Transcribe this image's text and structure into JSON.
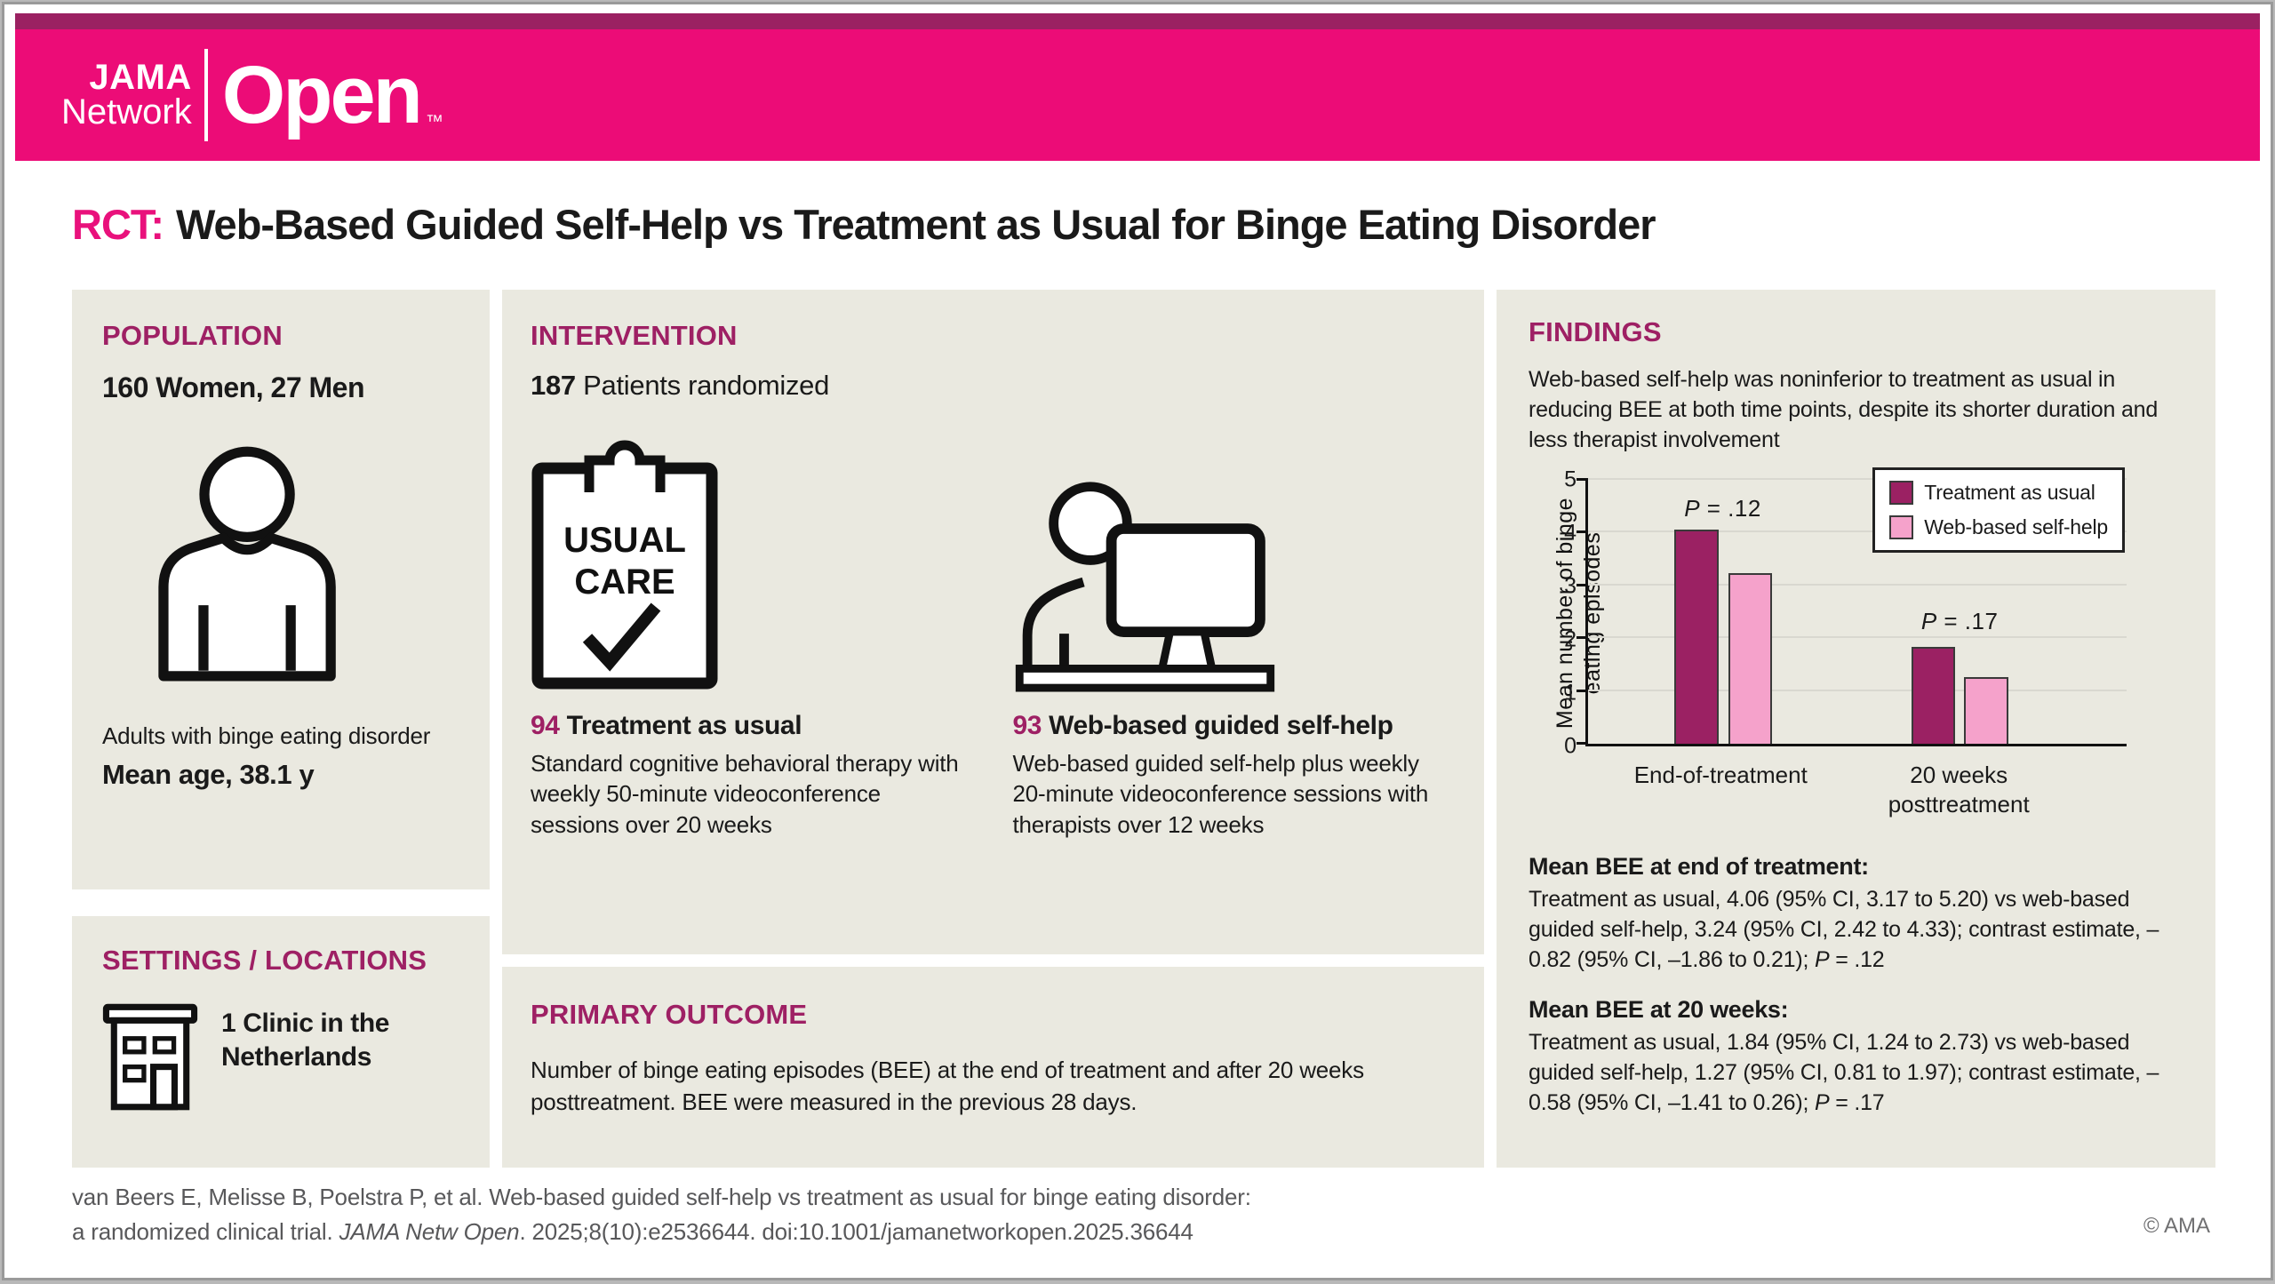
{
  "logo": {
    "line1": "JAMA",
    "line2": "Network",
    "brand": "Open",
    "tm": "™"
  },
  "title": {
    "tag": "RCT:",
    "text": "Web-Based Guided Self-Help vs Treatment as Usual for Binge Eating Disorder"
  },
  "population": {
    "header": "POPULATION",
    "demographics": "160 Women, 27 Men",
    "caption": "Adults with binge eating disorder",
    "mean_age": "Mean age, 38.1 y"
  },
  "settings": {
    "header": "SETTINGS / LOCATIONS",
    "text": "1 Clinic in the\nNetherlands"
  },
  "intervention": {
    "header": "INTERVENTION",
    "randomized_count": "187",
    "randomized_label": "Patients randomized",
    "clipboard_line1": "USUAL",
    "clipboard_line2": "CARE",
    "arms": [
      {
        "count": "94",
        "name": "Treatment as usual",
        "description": "Standard cognitive behavioral therapy with weekly 50-minute videoconference sessions over 20 weeks"
      },
      {
        "count": "93",
        "name": "Web-based guided self-help",
        "description": "Web-based guided self-help plus weekly 20-minute videoconference sessions with therapists over 12 weeks"
      }
    ]
  },
  "primary_outcome": {
    "header": "PRIMARY OUTCOME",
    "text": "Number of binge eating episodes (BEE) at the end of treatment and after 20 weeks posttreatment. BEE were measured in the previous 28 days."
  },
  "findings": {
    "header": "FINDINGS",
    "summary": "Web-based self-help was noninferior to treatment as usual in reducing BEE at both time points, despite its shorter duration and less therapist involvement",
    "result1_heading": "Mean BEE at end of treatment:",
    "result1_body": "Treatment as usual, 4.06 (95% CI, 3.17 to 5.20) vs web-based guided self-help, 3.24 (95% CI, 2.42 to 4.33); contrast estimate, –0.82 (95% CI, –1.86 to 0.21); ",
    "result1_p_prefix": "P",
    "result1_p_rest": " = .12",
    "result2_heading": "Mean BEE at 20 weeks:",
    "result2_body": "Treatment as usual, 1.84 (95% CI, 1.24 to 2.73) vs web-based guided self-help, 1.27 (95% CI, 0.81 to 1.97); contrast estimate, –0.58 (95% CI, –1.41 to 0.26); ",
    "result2_p_prefix": "P",
    "result2_p_rest": " = .17"
  },
  "chart_data": {
    "type": "bar",
    "title": "",
    "ylabel": "Mean number of binge\neating episodes",
    "xlabel": "",
    "ylim": [
      0,
      5
    ],
    "yticks": [
      0,
      1,
      2,
      3,
      4,
      5
    ],
    "grid": true,
    "legend_position": "top-right",
    "categories": [
      "End-of-treatment",
      "20 weeks\nposttreatment"
    ],
    "series": [
      {
        "name": "Treatment as usual",
        "color": "#9b2163",
        "values": [
          4.06,
          1.84
        ]
      },
      {
        "name": "Web-based self-help",
        "color": "#f5a2cb",
        "values": [
          3.24,
          1.27
        ]
      }
    ],
    "annotations": [
      {
        "group": 0,
        "p_prefix": "P",
        "p_rest": " = .12"
      },
      {
        "group": 1,
        "p_prefix": "P",
        "p_rest": " = .17"
      }
    ]
  },
  "footer": {
    "citation_line1": "van Beers E, Melisse B, Poelstra P, et al. Web-based guided self-help vs treatment as usual for binge eating disorder:",
    "citation_line2_pre": "a randomized clinical trial. ",
    "citation_journal": "JAMA Netw Open",
    "citation_line2_post": ". 2025;8(10):e2536644. doi:10.1001/jamanetworkopen.2025.36644",
    "copyright": "© AMA"
  },
  "colors": {
    "brand_pink": "#ec0c77",
    "brand_dark_strip": "#9b2162",
    "section_heading": "#9e2064",
    "bar_treatment_as_usual": "#9b2163",
    "bar_web_based_self_help": "#f5a2cb",
    "panel_background": "#eae9e0",
    "citation_gray": "#58585a"
  }
}
